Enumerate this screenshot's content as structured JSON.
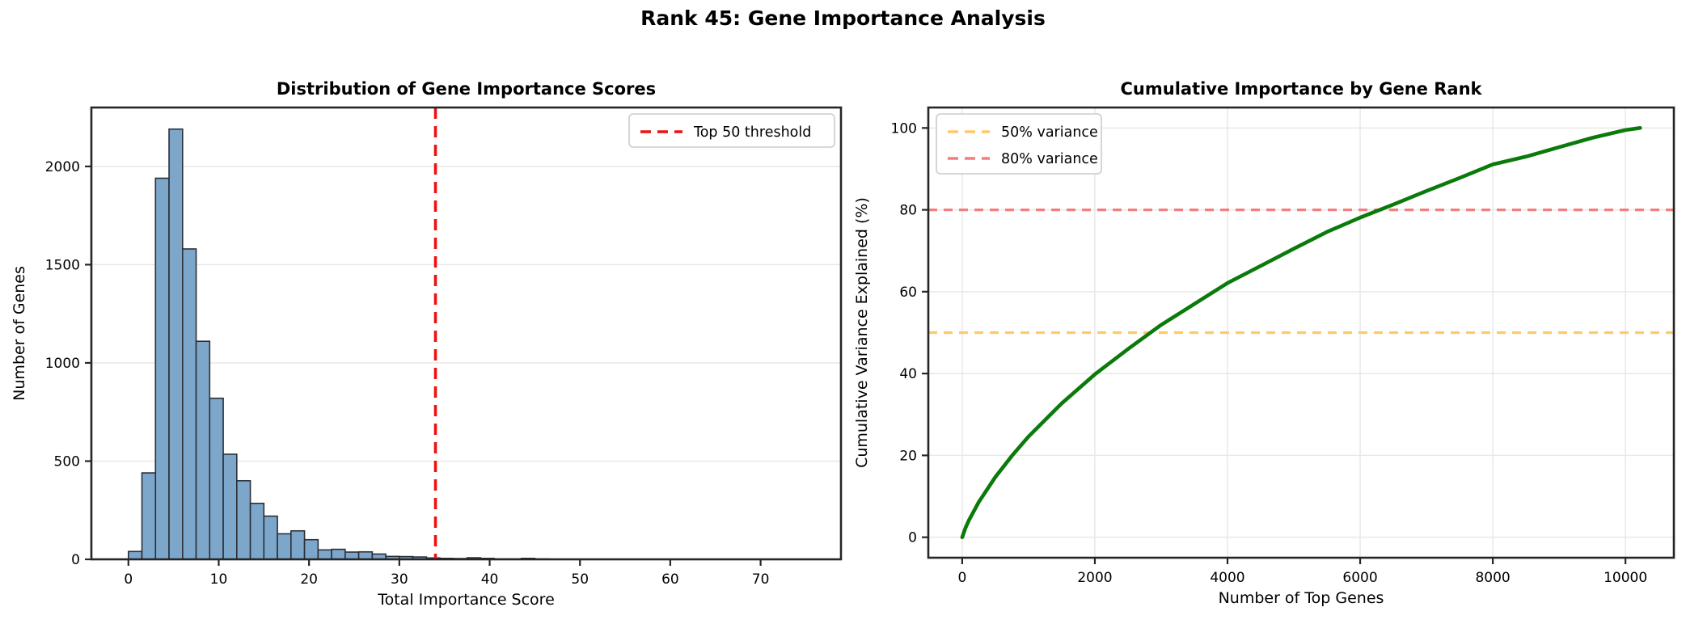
{
  "figure": {
    "title": "Rank 45: Gene Importance Analysis",
    "background": "#ffffff"
  },
  "colors": {
    "bar_fill": "#7DA7CA",
    "bar_edge": "#2b2f36",
    "threshold_red": "#ee1111",
    "curve_green": "#0a7a0a",
    "variance50_orange": "#FFC96B",
    "variance80_salmon": "#F47E7E",
    "grid": "#e8e8e8",
    "spine": "#262626",
    "legend_border": "#cccccc"
  },
  "chart_data": [
    {
      "type": "bar",
      "name": "histogram",
      "title": "Distribution of Gene Importance Scores",
      "xlabel": "Total Importance Score",
      "ylabel": "Number of Genes",
      "xlim": [
        -4.1,
        78.9
      ],
      "ylim": [
        0,
        2300
      ],
      "xticks": [
        0,
        10,
        20,
        30,
        40,
        50,
        60,
        70
      ],
      "yticks": [
        0,
        500,
        1000,
        1500,
        2000
      ],
      "grid": "y",
      "bin_start": 0,
      "bin_width": 1.5,
      "counts": [
        40,
        440,
        1940,
        2190,
        1580,
        1110,
        820,
        535,
        400,
        285,
        220,
        130,
        145,
        100,
        48,
        51,
        37,
        38,
        27,
        15,
        14,
        12,
        7,
        5,
        4,
        8,
        5,
        2,
        2,
        5,
        2,
        1,
        1,
        0,
        1,
        0,
        0,
        0,
        0,
        1,
        0,
        0,
        0,
        0,
        0,
        0,
        0,
        0,
        0,
        1
      ],
      "threshold": {
        "x": 34,
        "label": "Top 50 threshold"
      },
      "legend": {
        "position": "top-right",
        "items": [
          {
            "label": "Top 50 threshold",
            "color_key": "threshold_red"
          }
        ]
      }
    },
    {
      "type": "line",
      "name": "cumulative",
      "title": "Cumulative Importance by Gene Rank",
      "xlabel": "Number of Top Genes",
      "ylabel": "Cumulative Variance Explained (%)",
      "xlim": [
        -511,
        10730
      ],
      "ylim": [
        -5,
        105
      ],
      "xticks": [
        0,
        2000,
        4000,
        6000,
        8000,
        10000
      ],
      "yticks": [
        0,
        20,
        40,
        60,
        80,
        100
      ],
      "grid": "both",
      "series": [
        {
          "name": "cumulative-variance",
          "x": [
            0,
            50,
            100,
            250,
            500,
            750,
            1000,
            1500,
            2000,
            2500,
            3000,
            3500,
            4000,
            4500,
            5000,
            5500,
            6000,
            6500,
            7000,
            7500,
            8000,
            8500,
            9000,
            9500,
            10000,
            10222
          ],
          "y": [
            0,
            2.3,
            4.1,
            8.6,
            14.7,
            19.9,
            24.6,
            32.7,
            39.8,
            46.0,
            51.9,
            57.0,
            62.1,
            66.3,
            70.5,
            74.6,
            78.1,
            81.3,
            84.6,
            87.8,
            91.1,
            93.0,
            95.3,
            97.6,
            99.5,
            100
          ]
        }
      ],
      "hlines": [
        {
          "y": 50,
          "label": "50% variance",
          "color_key": "variance50_orange"
        },
        {
          "y": 80,
          "label": "80% variance",
          "color_key": "variance80_salmon"
        }
      ],
      "legend": {
        "position": "top-left",
        "items": [
          {
            "label": "50% variance",
            "color_key": "variance50_orange"
          },
          {
            "label": "80% variance",
            "color_key": "variance80_salmon"
          }
        ]
      }
    }
  ]
}
